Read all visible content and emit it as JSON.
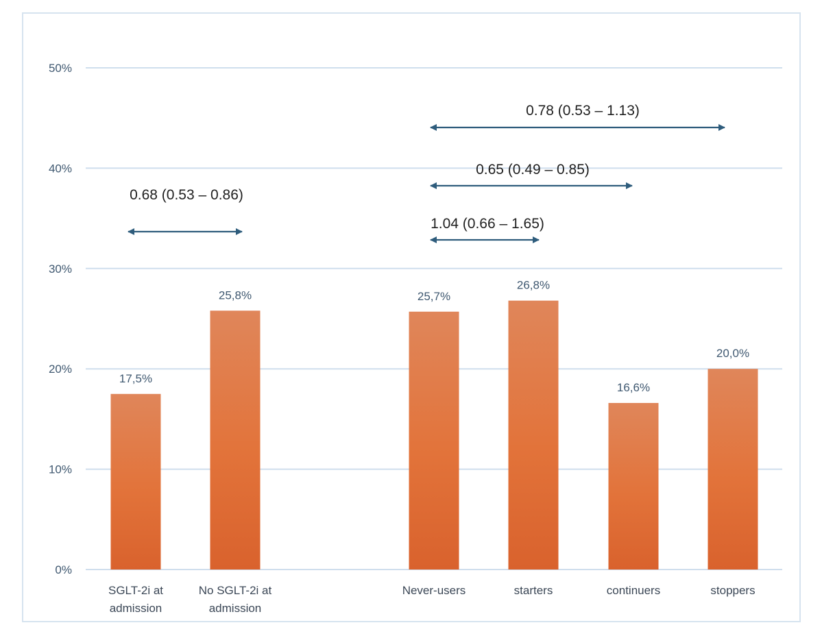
{
  "chart_data": {
    "type": "bar",
    "categories": [
      [
        "SGLT-2i at",
        "admission"
      ],
      [
        "No SGLT-2i at",
        "admission"
      ],
      [
        "Never-users"
      ],
      [
        "starters"
      ],
      [
        "continuers"
      ],
      [
        "stoppers"
      ]
    ],
    "values": [
      17.5,
      25.8,
      25.7,
      26.8,
      16.6,
      20.0
    ],
    "data_labels": [
      "17,5%",
      "25,8%",
      "25,7%",
      "26,8%",
      "16,6%",
      "20,0%"
    ],
    "ylim": [
      0,
      50
    ],
    "yticks": [
      0,
      10,
      20,
      30,
      40,
      50
    ],
    "ytick_labels": [
      "0%",
      "10%",
      "20%",
      "30%",
      "40%",
      "50%"
    ],
    "grid": true,
    "colors": {
      "bar_top": "#e0865a",
      "bar_mid": "#e2733a",
      "bar_bottom": "#d9622d",
      "grid": "#cfdeed",
      "arrow": "#2e5c7c"
    },
    "annotations": [
      {
        "text": "0.68 (0.53 – 0.86)",
        "from_category": 0,
        "to_category": 1
      },
      {
        "text": "1.04 (0.66 – 1.65)",
        "from_category": 2,
        "to_category": 3
      },
      {
        "text": "0.65 (0.49 – 0.85)",
        "from_category": 2,
        "to_category": 4
      },
      {
        "text": "0.78 (0.53 – 1.13)",
        "from_category": 2,
        "to_category": 5
      }
    ]
  }
}
